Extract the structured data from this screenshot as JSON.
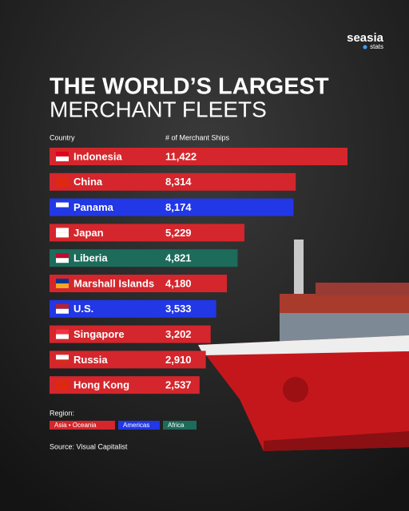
{
  "brand": {
    "name": "seasia",
    "sub": "stats"
  },
  "chart_data": {
    "type": "bar",
    "orientation": "horizontal",
    "title": [
      "THE WORLD’S LARGEST",
      "MERCHANT FLEETS"
    ],
    "category_header": "Country",
    "value_header": "# of Merchant Ships",
    "categories": [
      "Indonesia",
      "China",
      "Panama",
      "Japan",
      "Liberia",
      "Marshall Islands",
      "U.S.",
      "Singapore",
      "Russia",
      "Hong Kong"
    ],
    "values": [
      11422,
      8314,
      8174,
      5229,
      4821,
      4180,
      3533,
      3202,
      2910,
      2537
    ],
    "value_labels": [
      "11,422",
      "8,314",
      "8,174",
      "5,229",
      "4,821",
      "4,180",
      "3,533",
      "3,202",
      "2,910",
      "2,537"
    ],
    "colors": [
      "#d4262c",
      "#d4262c",
      "#2237e6",
      "#d4262c",
      "#1c6b5b",
      "#d4262c",
      "#2237e6",
      "#d4262c",
      "#d4262c",
      "#d4262c"
    ],
    "legend_title": "Region:",
    "legend": [
      {
        "name": "Asia • Oceania",
        "color": "#d4262c"
      },
      {
        "name": "Americas",
        "color": "#2237e6"
      },
      {
        "name": "Africa",
        "color": "#1c6b5b"
      }
    ],
    "source": "Source: Visual Capitalist"
  }
}
